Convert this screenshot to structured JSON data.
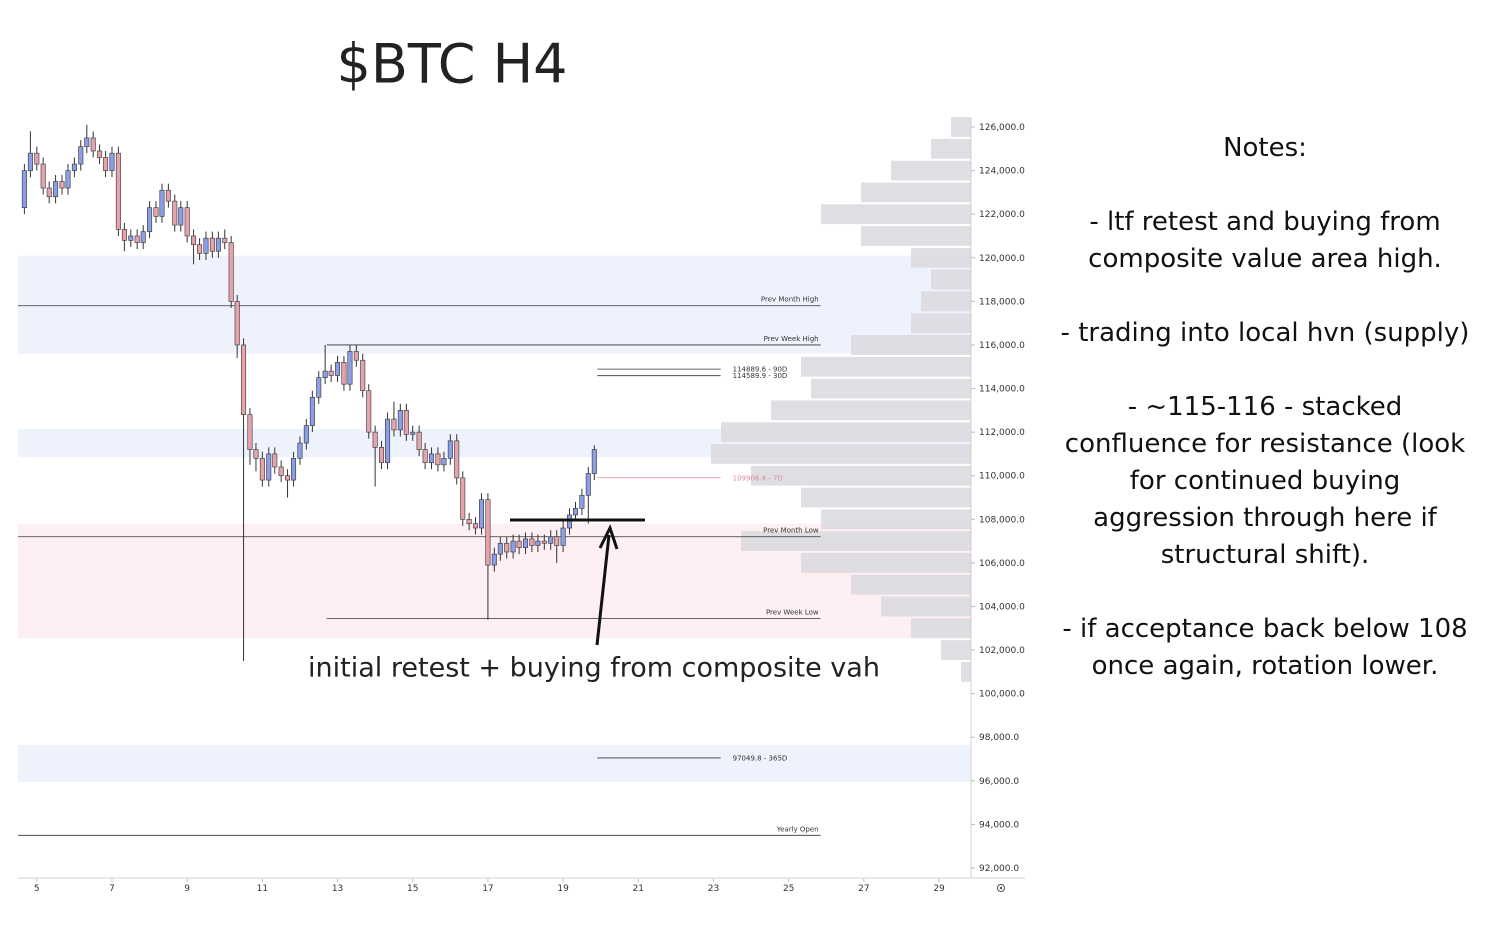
{
  "chart_data": {
    "type": "candlestick",
    "title": "$BTC H4",
    "x": [
      4.67,
      4.83,
      5,
      5.17,
      5.33,
      5.5,
      5.67,
      5.83,
      6,
      6.17,
      6.33,
      6.5,
      6.67,
      6.83,
      7,
      7.17,
      7.33,
      7.5,
      7.67,
      7.83,
      8,
      8.17,
      8.33,
      8.5,
      8.67,
      8.83,
      9,
      9.17,
      9.33,
      9.5,
      9.67,
      9.83,
      10,
      10.17,
      10.33,
      10.5,
      10.67,
      10.83,
      11,
      11.17,
      11.33,
      11.5,
      11.67,
      11.83,
      12,
      12.17,
      12.33,
      12.5,
      12.67,
      12.83,
      13,
      13.17,
      13.33,
      13.5,
      13.67,
      13.83,
      14,
      14.17,
      14.33,
      14.5,
      14.67,
      14.83,
      15,
      15.17,
      15.33,
      15.5,
      15.67,
      15.83,
      16,
      16.17,
      16.33,
      16.5,
      16.67,
      16.83,
      17,
      17.17,
      17.33,
      17.5,
      17.67,
      17.83,
      18,
      18.17,
      18.33,
      18.5,
      18.67,
      18.83,
      19,
      19.17,
      19.33,
      19.5,
      19.67,
      19.83
    ],
    "open": [
      122300,
      124000,
      124800,
      124300,
      123200,
      122800,
      123500,
      123200,
      124000,
      124300,
      125100,
      125500,
      124900,
      124600,
      124000,
      124800,
      121300,
      120800,
      121000,
      120700,
      121200,
      122300,
      121900,
      123100,
      122600,
      121500,
      122300,
      121000,
      120600,
      120200,
      120900,
      120300,
      120900,
      120700,
      118000,
      116000,
      112800,
      111200,
      110800,
      109800,
      111000,
      110400,
      110000,
      109800,
      110800,
      111500,
      112300,
      113600,
      114500,
      114800,
      114600,
      115200,
      114200,
      115700,
      115300,
      113900,
      112000,
      111300,
      110600,
      112600,
      112100,
      113000,
      111900,
      112000,
      111200,
      110600,
      111000,
      110500,
      110800,
      111600,
      109900,
      108000,
      107800,
      107600,
      108900,
      105900,
      106400,
      106900,
      106500,
      107000,
      106700,
      107100,
      106800,
      107000,
      106900,
      107200,
      106800,
      107600,
      108200,
      108500,
      109100,
      110100
    ],
    "high": [
      124300,
      125800,
      125100,
      124600,
      123500,
      123800,
      123800,
      124300,
      124600,
      125400,
      126100,
      125800,
      125200,
      124900,
      125100,
      125100,
      121600,
      121300,
      121300,
      121500,
      122600,
      122600,
      123400,
      123400,
      122900,
      122600,
      122600,
      121300,
      120900,
      121200,
      121200,
      121200,
      121300,
      121000,
      118300,
      116300,
      113100,
      111500,
      111100,
      111300,
      111300,
      110700,
      110300,
      111100,
      111800,
      112600,
      113900,
      114800,
      116000,
      115100,
      115500,
      115500,
      116000,
      116000,
      115600,
      114200,
      112300,
      111600,
      112900,
      113400,
      113300,
      113300,
      112300,
      112300,
      111500,
      111300,
      111300,
      111100,
      111900,
      111900,
      110200,
      108300,
      108100,
      109200,
      109200,
      106700,
      107200,
      107200,
      107300,
      107300,
      107400,
      107400,
      107300,
      107300,
      107500,
      107500,
      107900,
      108500,
      108800,
      109400,
      110400,
      111400
    ],
    "low": [
      122000,
      123700,
      124000,
      122900,
      122500,
      122500,
      122900,
      122900,
      123700,
      124000,
      124800,
      124600,
      124300,
      123700,
      123700,
      121000,
      120300,
      120500,
      120400,
      120400,
      120900,
      121600,
      121600,
      122300,
      121200,
      121200,
      120700,
      119700,
      119900,
      119900,
      120000,
      120000,
      120400,
      117700,
      115400,
      101500,
      110500,
      110200,
      109500,
      109500,
      110100,
      109700,
      109000,
      109500,
      110500,
      111200,
      112000,
      113300,
      114200,
      114300,
      114300,
      113900,
      113900,
      115000,
      113600,
      111700,
      109500,
      110300,
      110300,
      111800,
      111800,
      111600,
      111600,
      110900,
      110300,
      110300,
      110200,
      110200,
      110500,
      109600,
      107700,
      107500,
      107300,
      107300,
      103400,
      105600,
      106100,
      106200,
      106200,
      106400,
      106400,
      106500,
      106500,
      106600,
      106600,
      106000,
      106500,
      107300,
      107900,
      108200,
      107800,
      109800
    ],
    "close": [
      124000,
      124800,
      124300,
      123200,
      122800,
      123500,
      123200,
      124000,
      124300,
      125100,
      125500,
      124900,
      124600,
      124000,
      124800,
      121300,
      120800,
      121000,
      120700,
      121200,
      122300,
      121900,
      123100,
      122600,
      121500,
      122300,
      121000,
      120600,
      120200,
      120900,
      120300,
      120900,
      120700,
      118000,
      116000,
      112800,
      111200,
      110800,
      109800,
      111000,
      110400,
      110000,
      109800,
      110800,
      111500,
      112300,
      113600,
      114500,
      114800,
      114600,
      115200,
      114200,
      115700,
      115300,
      113900,
      112000,
      111300,
      110600,
      112600,
      112100,
      113000,
      111900,
      112000,
      111200,
      110600,
      111000,
      110500,
      110800,
      111600,
      109900,
      108000,
      107800,
      107600,
      108900,
      105900,
      106400,
      106900,
      106500,
      107000,
      106700,
      107100,
      106800,
      107000,
      106900,
      107200,
      106800,
      107600,
      108200,
      108500,
      109100,
      110100,
      111200
    ],
    "up_color": "#8c9ee6",
    "down_color": "#e6a3ad",
    "wick_color": "#333333",
    "xlim": [
      4.5,
      29.85
    ],
    "xticks": [
      5,
      7,
      9,
      11,
      13,
      15,
      17,
      19,
      21,
      23,
      25,
      27,
      29
    ],
    "ylim": [
      91500,
      126400
    ],
    "yticks": [
      {
        "value": 92000,
        "label": "92,000.0"
      },
      {
        "value": 94000,
        "label": "94,000.0"
      },
      {
        "value": 96000,
        "label": "96,000.0"
      },
      {
        "value": 98000,
        "label": "98,000.0"
      },
      {
        "value": 100000,
        "label": "100,000.0"
      },
      {
        "value": 102000,
        "label": "102,000.0"
      },
      {
        "value": 104000,
        "label": "104,000.0"
      },
      {
        "value": 106000,
        "label": "106,000.0"
      },
      {
        "value": 108000,
        "label": "108,000.0"
      },
      {
        "value": 110000,
        "label": "110,000.0"
      },
      {
        "value": 112000,
        "label": "112,000.0"
      },
      {
        "value": 114000,
        "label": "114,000.0"
      },
      {
        "value": 116000,
        "label": "116,000.0"
      },
      {
        "value": 118000,
        "label": "118,000.0"
      },
      {
        "value": 120000,
        "label": "120,000.0"
      },
      {
        "value": 122000,
        "label": "122,000.0"
      },
      {
        "value": 124000,
        "label": "124,000.0"
      },
      {
        "value": 126000,
        "label": "126,000.0"
      }
    ],
    "grid": false,
    "zones": [
      {
        "from": 115600,
        "to": 120100,
        "color": "#eef2fc"
      },
      {
        "from": 110850,
        "to": 112150,
        "color": "#eef2fc"
      },
      {
        "from": 102550,
        "to": 107800,
        "color": "#fdeff2"
      },
      {
        "from": 95950,
        "to": 97650,
        "color": "#eef2fc"
      }
    ],
    "levels": [
      {
        "label": "Prev Month High",
        "value": 117800,
        "x_from": 4.5,
        "x_to": 25.85,
        "color": "#333333",
        "label_side": "above"
      },
      {
        "label": "Prev Week High",
        "value": 116000,
        "x_from": 12.71,
        "x_to": 25.85,
        "color": "#333333",
        "label_side": "above"
      },
      {
        "label": "114889.6 - 90D",
        "value": 114889.6,
        "x_from": 19.91,
        "x_to": 23.19,
        "color": "#333333",
        "label_side": "right"
      },
      {
        "label": "114589.9 - 30D",
        "value": 114589.9,
        "x_from": 19.91,
        "x_to": 23.19,
        "color": "#333333",
        "label_side": "right"
      },
      {
        "label": "109906.4 - 7D",
        "value": 109906.4,
        "x_from": 19.91,
        "x_to": 23.19,
        "color": "#e0899b",
        "label_side": "right"
      },
      {
        "label": "Prev Month Low",
        "value": 107200,
        "x_from": 4.5,
        "x_to": 25.85,
        "color": "#333333",
        "label_side": "above"
      },
      {
        "label": "Prev Week Low",
        "value": 103450,
        "x_from": 12.71,
        "x_to": 25.85,
        "color": "#333333",
        "label_side": "above"
      },
      {
        "label": "97049.8 - 365D",
        "value": 97049.8,
        "x_from": 19.91,
        "x_to": 23.19,
        "color": "#333333",
        "label_side": "right"
      },
      {
        "label": "Yearly Open",
        "value": 93500,
        "x_from": 4.5,
        "x_to": 25.85,
        "color": "#333333",
        "label_side": "above"
      }
    ],
    "volume_profile": {
      "color": "#d9d9de",
      "prices": [
        101000,
        102000,
        103000,
        104000,
        105000,
        106000,
        107000,
        108000,
        109000,
        110000,
        111000,
        112000,
        113000,
        114000,
        115000,
        116000,
        117000,
        118000,
        119000,
        120000,
        121000,
        122000,
        123000,
        124000,
        125000,
        126000
      ],
      "volumes": [
        10,
        30,
        60,
        90,
        120,
        170,
        230,
        150,
        170,
        220,
        260,
        250,
        200,
        160,
        170,
        120,
        60,
        50,
        40,
        60,
        110,
        150,
        110,
        80,
        40,
        20
      ]
    },
    "annotation": "initial retest + buying from composite vah"
  },
  "notes": {
    "title": "Notes:",
    "items": [
      "- ltf retest and buying from composite value area high.",
      "- trading into local hvn (supply)",
      "- ~115-116 - stacked confluence for resistance (look for continued buying aggression through here if structural shift).",
      "- if acceptance back below 108 once again, rotation lower."
    ]
  }
}
